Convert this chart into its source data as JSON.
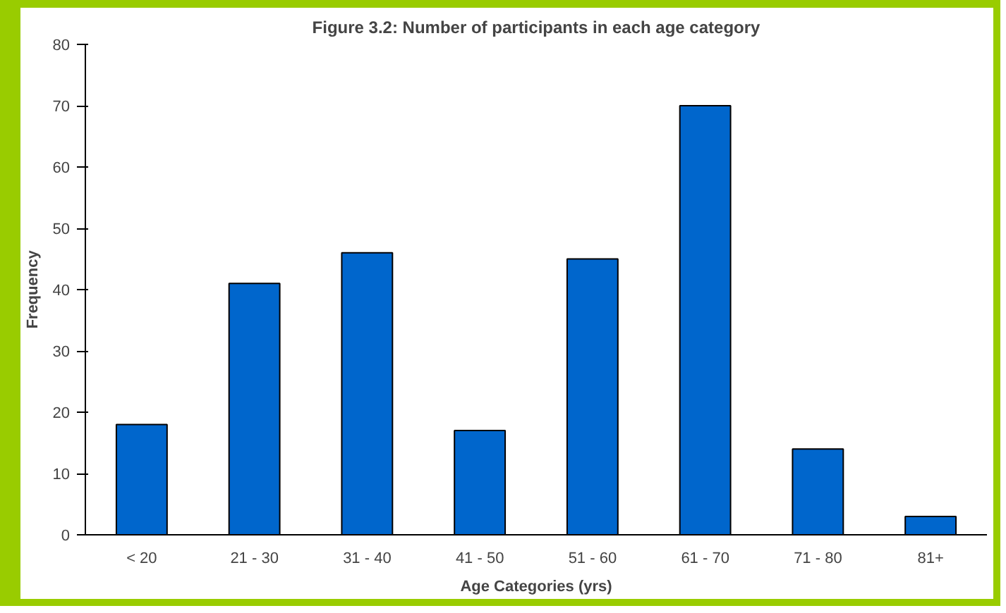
{
  "chart_data": {
    "type": "bar",
    "title": "Figure 3.2: Number of participants in each age category",
    "xlabel": "Age Categories (yrs)",
    "ylabel": "Frequency",
    "categories": [
      "< 20",
      "21 - 30",
      "31 - 40",
      "41 - 50",
      "51 - 60",
      "61 - 70",
      "71 - 80",
      "81+"
    ],
    "values": [
      18,
      41,
      46,
      17,
      45,
      70,
      14,
      3
    ],
    "color": "#0066cc",
    "ylim": [
      0,
      80
    ],
    "yticks": [
      0,
      10,
      20,
      30,
      40,
      50,
      60,
      70,
      80
    ],
    "grid": false
  }
}
